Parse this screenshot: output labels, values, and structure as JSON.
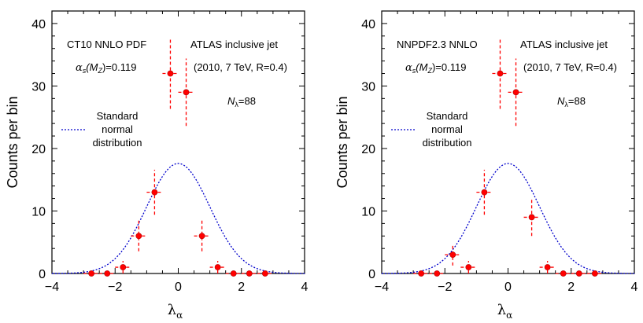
{
  "colors": {
    "points": "#ff0000",
    "curve": "#0000cc",
    "axis": "#000000"
  },
  "chart_data": [
    {
      "type": "scatter",
      "xlabel": "λ",
      "xlabel_sub": "α",
      "ylabel": "Counts per bin",
      "xlim": [
        -4,
        4
      ],
      "ylim": [
        0,
        42
      ],
      "xticks": [
        -4,
        -2,
        0,
        2,
        4
      ],
      "yticks": [
        0,
        10,
        20,
        30,
        40
      ],
      "grid": false,
      "annotations": {
        "pdf": "CT10 NNLO PDF",
        "alpha_pre": "α",
        "alpha_sub": "s",
        "alpha_mid": "(M",
        "alpha_sub2": "Z",
        "alpha_post": ")=0.119",
        "experiment": "ATLAS inclusive jet",
        "conditions": "(2010, 7 TeV, R=0.4)",
        "n_pre": "N",
        "n_sub": "λ",
        "n_post": "=88",
        "legend_line1": "Standard",
        "legend_line2": "normal",
        "legend_line3": "distribution"
      },
      "series": [
        {
          "name": "Standard normal distribution",
          "type": "line",
          "style": "dotted",
          "peak": 17.6,
          "mean": 0,
          "sigma": 1
        },
        {
          "type": "scatter-errorbars",
          "x": [
            -2.75,
            -2.25,
            -1.75,
            -1.25,
            -0.75,
            -0.25,
            0.25,
            0.75,
            1.25,
            1.75,
            2.25,
            2.75
          ],
          "y": [
            0,
            0,
            1,
            6,
            13,
            32,
            29,
            6,
            1,
            0,
            0,
            0
          ],
          "xerr": 0.25
        }
      ]
    },
    {
      "type": "scatter",
      "xlabel": "λ",
      "xlabel_sub": "α",
      "ylabel": "Counts per bin",
      "xlim": [
        -4,
        4
      ],
      "ylim": [
        0,
        42
      ],
      "xticks": [
        -4,
        -2,
        0,
        2,
        4
      ],
      "yticks": [
        0,
        10,
        20,
        30,
        40
      ],
      "grid": false,
      "annotations": {
        "pdf": "NNPDF2.3 NNLO",
        "alpha_pre": "α",
        "alpha_sub": "s",
        "alpha_mid": "(M",
        "alpha_sub2": "Z",
        "alpha_post": ")=0.119",
        "experiment": "ATLAS inclusive jet",
        "conditions": "(2010, 7 TeV, R=0.4)",
        "n_pre": "N",
        "n_sub": "λ",
        "n_post": "=88",
        "legend_line1": "Standard",
        "legend_line2": "normal",
        "legend_line3": "distribution"
      },
      "series": [
        {
          "name": "Standard normal distribution",
          "type": "line",
          "style": "dotted",
          "peak": 17.6,
          "mean": 0,
          "sigma": 1
        },
        {
          "type": "scatter-errorbars",
          "x": [
            -2.75,
            -2.25,
            -1.75,
            -1.25,
            -0.75,
            -0.25,
            0.25,
            0.75,
            1.25,
            1.75,
            2.25,
            2.75
          ],
          "y": [
            0,
            0,
            3,
            1,
            13,
            32,
            29,
            9,
            1,
            0,
            0,
            0
          ],
          "xerr": 0.25
        }
      ]
    }
  ]
}
